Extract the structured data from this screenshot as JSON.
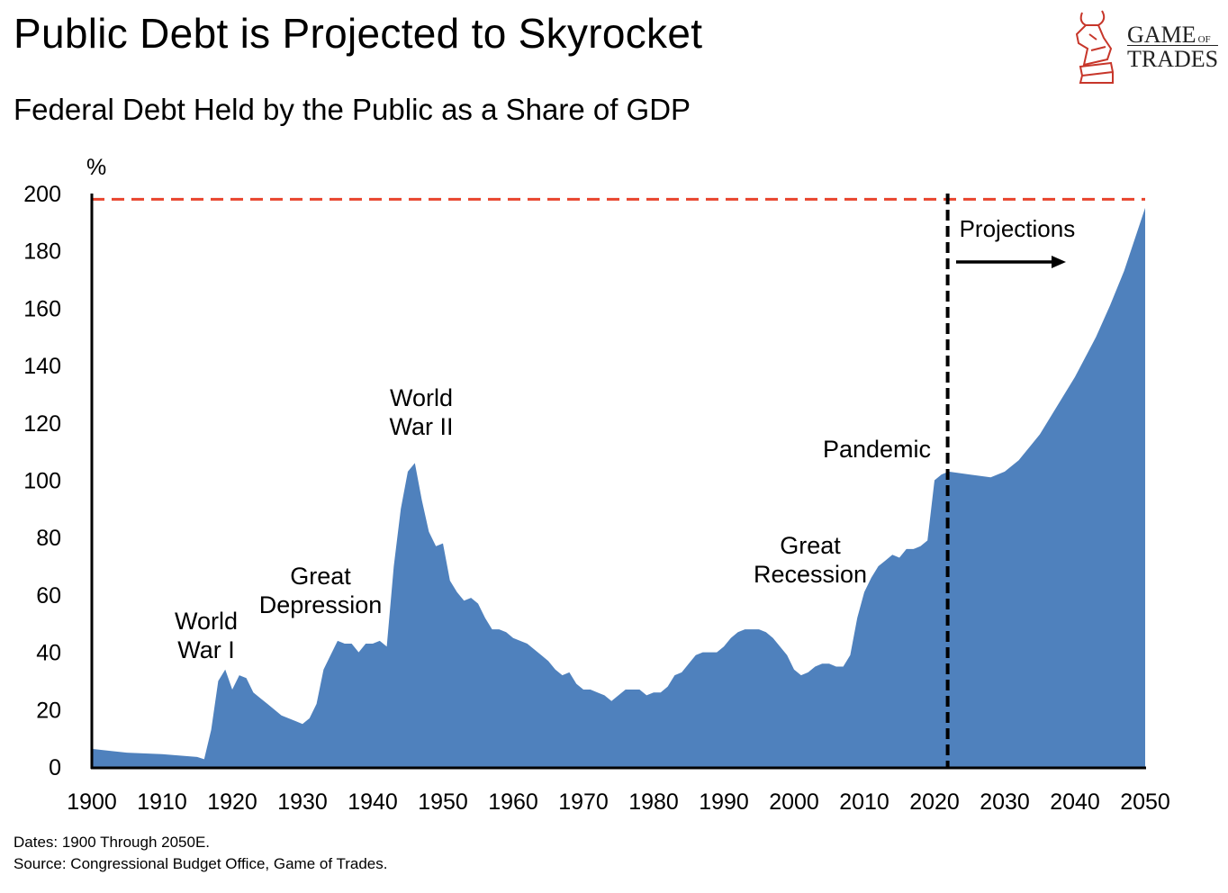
{
  "title": "Public Debt is Projected to Skyrocket",
  "subtitle": "Federal Debt Held by the Public as a Share of GDP",
  "footer": {
    "dates": "Dates: 1900 Through 2050E.",
    "source": "Source: Congressional Budget Office, Game of Trades."
  },
  "logo": {
    "line1": "GAME",
    "line1_small": "OF",
    "line2": "TRADES"
  },
  "colors": {
    "area": "#4f81bd",
    "reference_line": "#e8432d",
    "axis": "#000000"
  },
  "chart_data": {
    "type": "area",
    "ylabel": "%",
    "xlim": [
      1900,
      2050
    ],
    "ylim": [
      0,
      200
    ],
    "xticks": [
      1900,
      1910,
      1920,
      1930,
      1940,
      1950,
      1960,
      1970,
      1980,
      1990,
      2000,
      2010,
      2020,
      2030,
      2040,
      2050
    ],
    "yticks": [
      0,
      20,
      40,
      60,
      80,
      100,
      120,
      140,
      160,
      180,
      200
    ],
    "grid": false,
    "reference_line": {
      "y": 198,
      "style": "dashed"
    },
    "projection_start": {
      "x": 2022,
      "label": "Projections"
    },
    "annotations": [
      {
        "text": [
          "World",
          "War I"
        ]
      },
      {
        "text": [
          "Great",
          "Depression"
        ]
      },
      {
        "text": [
          "World",
          "War II"
        ]
      },
      {
        "text": [
          "Great",
          "Recession"
        ]
      },
      {
        "text": [
          "Pandemic"
        ]
      }
    ],
    "x": [
      1900,
      1905,
      1910,
      1915,
      1916,
      1917,
      1918,
      1919,
      1920,
      1921,
      1922,
      1923,
      1924,
      1925,
      1927,
      1929,
      1930,
      1931,
      1932,
      1933,
      1934,
      1935,
      1936,
      1937,
      1938,
      1939,
      1940,
      1941,
      1942,
      1943,
      1944,
      1945,
      1946,
      1947,
      1948,
      1949,
      1950,
      1951,
      1952,
      1953,
      1954,
      1955,
      1956,
      1957,
      1958,
      1959,
      1960,
      1961,
      1962,
      1963,
      1964,
      1965,
      1966,
      1967,
      1968,
      1969,
      1970,
      1971,
      1972,
      1973,
      1974,
      1975,
      1976,
      1977,
      1978,
      1979,
      1980,
      1981,
      1982,
      1983,
      1984,
      1985,
      1986,
      1987,
      1988,
      1989,
      1990,
      1991,
      1992,
      1993,
      1994,
      1995,
      1996,
      1997,
      1998,
      1999,
      2000,
      2001,
      2002,
      2003,
      2004,
      2005,
      2006,
      2007,
      2008,
      2009,
      2010,
      2011,
      2012,
      2013,
      2014,
      2015,
      2016,
      2017,
      2018,
      2019,
      2020,
      2021,
      2022,
      2025,
      2028,
      2030,
      2032,
      2035,
      2038,
      2040,
      2043,
      2045,
      2047,
      2050
    ],
    "values": [
      6.3,
      5,
      4.5,
      3.5,
      2.7,
      13,
      30,
      34,
      27,
      32,
      31,
      26,
      24,
      22,
      18,
      16,
      15,
      17,
      22,
      34,
      39,
      44,
      43,
      43,
      40,
      43,
      43,
      44,
      42,
      70,
      90,
      103,
      106,
      93,
      82,
      77,
      78,
      65,
      61,
      58,
      59,
      57,
      52,
      48,
      48,
      47,
      45,
      44,
      43,
      41,
      39,
      37,
      34,
      32,
      33,
      29,
      27,
      27,
      26,
      25,
      23,
      25,
      27,
      27,
      27,
      25,
      26,
      26,
      28,
      32,
      33,
      36,
      39,
      40,
      40,
      40,
      42,
      45,
      47,
      48,
      48,
      48,
      47,
      45,
      42,
      39,
      34,
      32,
      33,
      35,
      36,
      36,
      35,
      35,
      39,
      52,
      61,
      66,
      70,
      72,
      74,
      73,
      76,
      76,
      77,
      79,
      100,
      102,
      103,
      102,
      101,
      103,
      107,
      116,
      128,
      136,
      150,
      161,
      173,
      195
    ]
  }
}
